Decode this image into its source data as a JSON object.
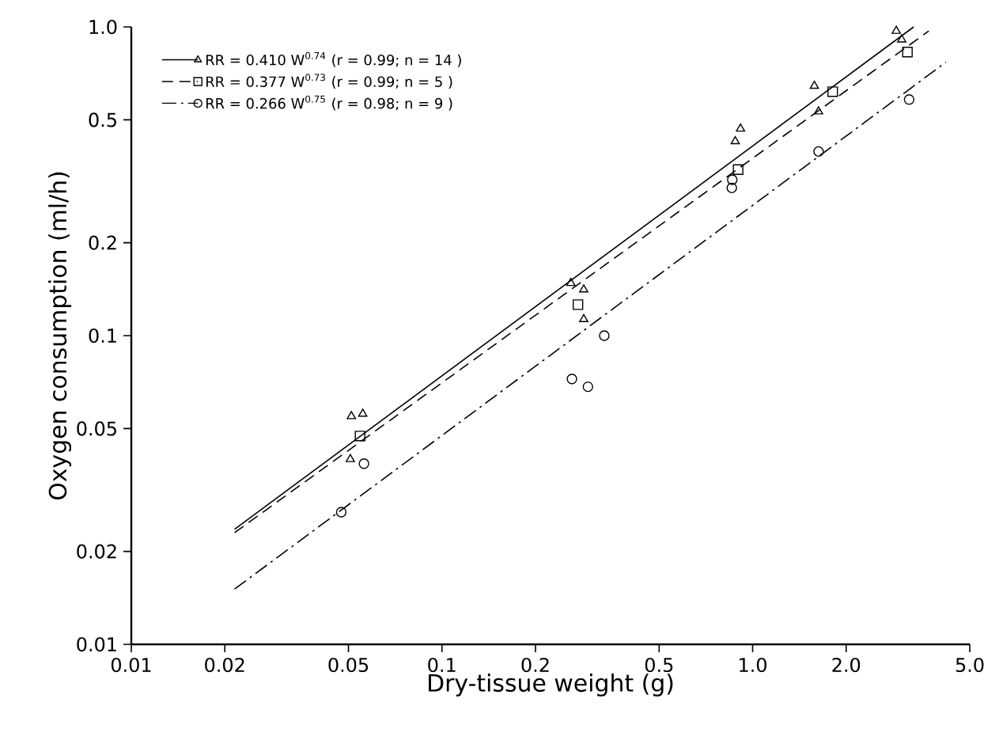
{
  "chart_data": {
    "type": "scatter",
    "xlabel": "Dry-tissue weight (g)",
    "ylabel": "Oxygen consumption (ml/h)",
    "log": "xy",
    "grid": false,
    "legend": "top left",
    "xlim": [
      0.01,
      5.0
    ],
    "ylim": [
      0.01,
      1.0
    ],
    "xticks": [
      0.01,
      0.02,
      0.05,
      0.1,
      0.2,
      0.5,
      {
        "value": 1,
        "label": "1.0"
      },
      {
        "value": 2,
        "label": "2.0"
      },
      {
        "value": 5,
        "label": "5.0"
      }
    ],
    "yticks": [
      0.01,
      0.02,
      0.05,
      0.1,
      0.2,
      0.5,
      {
        "value": 1,
        "label": "1.0"
      }
    ],
    "series": [
      {
        "name": "RR = 0.410 W$^{0.74}$ (r = 0.99; n = 14 )",
        "color": "#000000",
        "marker": "triangle",
        "line_style": "solid",
        "x": [
          0.0511,
          0.0556,
          0.0507,
          0.26,
          0.286,
          0.286,
          0.914,
          0.879,
          1.58,
          1.63,
          2.9,
          3.02
        ],
        "values": [
          0.0548,
          0.0558,
          0.0398,
          0.148,
          0.141,
          0.113,
          0.468,
          0.426,
          0.644,
          0.532,
          0.97,
          0.91
        ]
      },
      {
        "name": "RR = 0.377 W$^{0.73}$ (r = 0.99; n = 5 )",
        "color": "#000000",
        "marker": "square",
        "line_style": "dashed",
        "x": [
          0.0545,
          0.274,
          0.898,
          1.81,
          3.15
        ],
        "values": [
          0.0473,
          0.126,
          0.345,
          0.617,
          0.829
        ]
      },
      {
        "name": "RR = 0.266 W$^{0.75}$ (r = 0.98; n = 9 )",
        "color": "#000000",
        "marker": "circle",
        "line_style": "dashdot",
        "x": [
          0.0474,
          0.0561,
          0.262,
          0.295,
          0.333,
          0.857,
          0.86,
          1.63,
          3.19
        ],
        "values": [
          0.0268,
          0.0385,
          0.0724,
          0.0683,
          0.1,
          0.301,
          0.32,
          0.395,
          0.582
        ]
      },
      {
        "type": "line",
        "color": "#000000",
        "line_style": "solid",
        "x": [
          0.0215,
          3.3
        ],
        "values": [
          0.0236,
          1.0
        ]
      },
      {
        "type": "line",
        "color": "#000000",
        "line_style": "dashed",
        "x": [
          0.0215,
          3.69
        ],
        "values": [
          0.023,
          0.97
        ]
      },
      {
        "type": "line",
        "color": "#000000",
        "line_style": "dashdot",
        "x": [
          0.0215,
          4.19
        ],
        "values": [
          0.0151,
          0.769
        ]
      }
    ]
  }
}
